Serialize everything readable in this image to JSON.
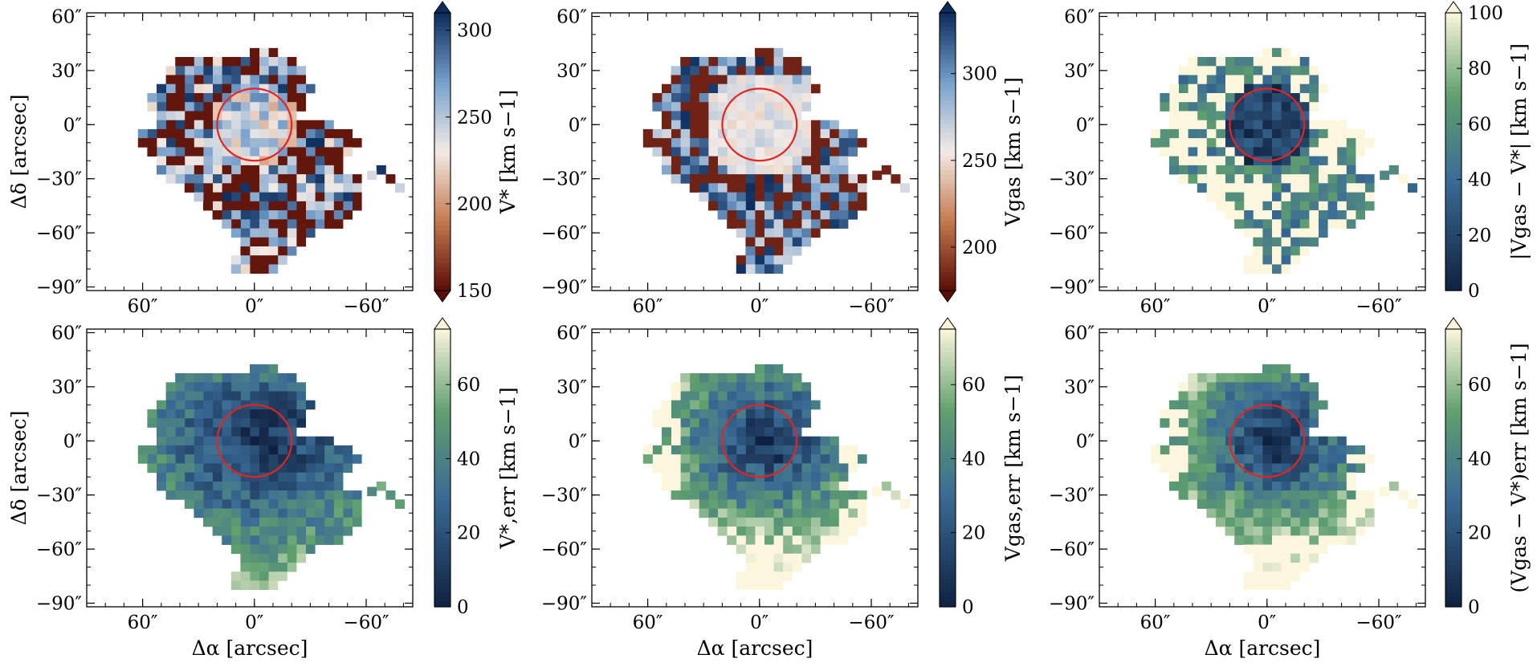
{
  "colors": {
    "beam_circle": "#e8231f",
    "sym_low": "#5b0d05",
    "sym_mid": "#f3ebe6",
    "sym_high": "#0b2c5c",
    "err_low": "#0f2140",
    "err_mid": "#5f9f6e",
    "err_high": "#fbf6dc"
  },
  "axis_ticks": {
    "x": [
      "60″",
      "0″",
      "−60″"
    ],
    "y": [
      "60″",
      "30″",
      "0″",
      "−30″",
      "−60″",
      "−90″"
    ],
    "x_values": [
      60,
      0,
      -60
    ],
    "y_values": [
      60,
      30,
      0,
      -30,
      -60,
      -90
    ]
  },
  "chart_data": [
    {
      "type": "heatmap",
      "panel": "top-left",
      "colorbar_label": "V* [km s−1]",
      "colorbar_ticks": [
        "150",
        "200",
        "250",
        "300"
      ],
      "colorbar_values": [
        150,
        200,
        250,
        300
      ],
      "vlim": [
        150,
        310
      ],
      "colormap": "diverging",
      "xlabel": "",
      "ylabel": "Δδ [arcsec]",
      "xlim": [
        90,
        -85
      ],
      "ylim": [
        -92,
        62
      ],
      "beam_circle": {
        "x": 0,
        "y": 0,
        "radius": 20
      }
    },
    {
      "type": "heatmap",
      "panel": "top-middle",
      "colorbar_label": "Vgas [km s−1]",
      "colorbar_ticks": [
        "200",
        "250",
        "300"
      ],
      "colorbar_values": [
        200,
        250,
        300
      ],
      "vlim": [
        175,
        335
      ],
      "colormap": "diverging",
      "xlabel": "",
      "ylabel": "",
      "xlim": [
        90,
        -85
      ],
      "ylim": [
        -92,
        62
      ],
      "beam_circle": {
        "x": 0,
        "y": 0,
        "radius": 20
      }
    },
    {
      "type": "heatmap",
      "panel": "top-right",
      "colorbar_label": "|Vgas − V*| [km s−1]",
      "colorbar_ticks": [
        "0",
        "20",
        "40",
        "60",
        "80",
        "100"
      ],
      "colorbar_values": [
        0,
        20,
        40,
        60,
        80,
        100
      ],
      "vlim": [
        0,
        100
      ],
      "colormap": "sequential",
      "xlabel": "",
      "ylabel": "",
      "xlim": [
        90,
        -85
      ],
      "ylim": [
        -92,
        62
      ],
      "beam_circle": {
        "x": 0,
        "y": 0,
        "radius": 20
      }
    },
    {
      "type": "heatmap",
      "panel": "bottom-left",
      "colorbar_label": "V*,err [km s−1]",
      "colorbar_ticks": [
        "0",
        "20",
        "40",
        "60"
      ],
      "colorbar_values": [
        0,
        20,
        40,
        60
      ],
      "vlim": [
        0,
        75
      ],
      "colormap": "sequential",
      "xlabel": "Δα [arcsec]",
      "ylabel": "Δδ [arcsec]",
      "xlim": [
        90,
        -85
      ],
      "ylim": [
        -92,
        62
      ],
      "beam_circle": {
        "x": 0,
        "y": 0,
        "radius": 20
      }
    },
    {
      "type": "heatmap",
      "panel": "bottom-middle",
      "colorbar_label": "Vgas,err [km s−1]",
      "colorbar_ticks": [
        "0",
        "20",
        "40",
        "60"
      ],
      "colorbar_values": [
        0,
        20,
        40,
        60
      ],
      "vlim": [
        0,
        75
      ],
      "colormap": "sequential",
      "xlabel": "Δα [arcsec]",
      "ylabel": "",
      "xlim": [
        90,
        -85
      ],
      "ylim": [
        -92,
        62
      ],
      "beam_circle": {
        "x": 0,
        "y": 0,
        "radius": 20
      }
    },
    {
      "type": "heatmap",
      "panel": "bottom-right",
      "colorbar_label": "(Vgas − V*)err [km s−1]",
      "colorbar_ticks": [
        "0",
        "20",
        "40",
        "60"
      ],
      "colorbar_values": [
        0,
        20,
        40,
        60
      ],
      "vlim": [
        0,
        75
      ],
      "colormap": "sequential",
      "xlabel": "Δα [arcsec]",
      "ylabel": "",
      "xlim": [
        90,
        -85
      ],
      "ylim": [
        -92,
        62
      ],
      "beam_circle": {
        "x": 0,
        "y": 0,
        "radius": 20
      }
    }
  ]
}
